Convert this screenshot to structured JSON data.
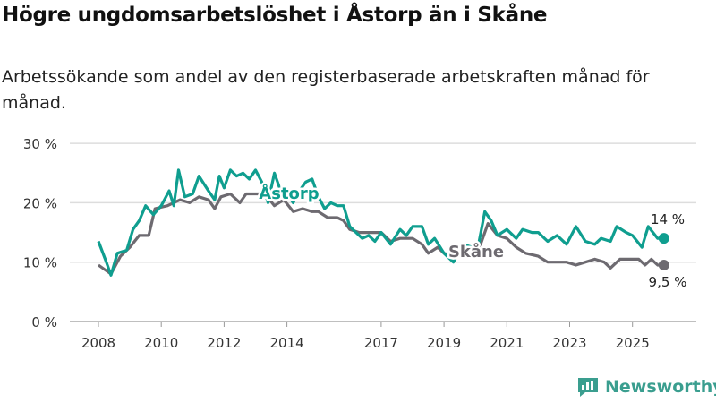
{
  "title": "Högre ungdomsarbetslöshet i Åstorp än i Skåne",
  "subtitle": "Arbetssökande som andel av den registerbaserade arbetskraften månad för månad.",
  "brand": "Newsworthy",
  "colors": {
    "astorp": "#0f9e8f",
    "skane": "#6d6a70",
    "grid": "#dddddd"
  },
  "chart_data": {
    "type": "line",
    "title": "Högre ungdomsarbetslöshet i Åstorp än i Skåne",
    "xlabel": "",
    "ylabel": "",
    "ylim": [
      0,
      30
    ],
    "xlim": [
      2007.0,
      2027.0
    ],
    "yticks": [
      0,
      10,
      20,
      30
    ],
    "ytick_labels": [
      "0 %",
      "10 %",
      "20 %",
      "30 %"
    ],
    "xticks": [
      2008,
      2010,
      2012,
      2014,
      2017,
      2019,
      2021,
      2023,
      2025
    ],
    "xtick_labels": [
      "2008",
      "2010",
      "2012",
      "2014",
      "2017",
      "2019",
      "2021",
      "2023",
      "2025"
    ],
    "grid": true,
    "series": [
      {
        "name": "Åstorp",
        "end_label": "14 %",
        "x": [
          2008.0,
          2008.25,
          2008.4,
          2008.6,
          2008.9,
          2009.1,
          2009.3,
          2009.5,
          2009.75,
          2010.0,
          2010.25,
          2010.4,
          2010.55,
          2010.75,
          2011.0,
          2011.2,
          2011.5,
          2011.7,
          2011.85,
          2012.0,
          2012.2,
          2012.4,
          2012.6,
          2012.8,
          2013.0,
          2013.2,
          2013.4,
          2013.6,
          2013.8,
          2014.0,
          2014.2,
          2014.4,
          2014.6,
          2014.8,
          2015.0,
          2015.2,
          2015.4,
          2015.6,
          2015.8,
          2016.0,
          2016.2,
          2016.4,
          2016.6,
          2016.8,
          2017.0,
          2017.3,
          2017.6,
          2017.8,
          2018.0,
          2018.3,
          2018.5,
          2018.7,
          2019.0,
          2019.3,
          2019.6,
          2019.9,
          2020.1,
          2020.3,
          2020.5,
          2020.7,
          2021.0,
          2021.3,
          2021.5,
          2021.8,
          2022.0,
          2022.3,
          2022.6,
          2022.9,
          2023.2,
          2023.5,
          2023.8,
          2024.0,
          2024.3,
          2024.5,
          2024.8,
          2025.0,
          2025.3,
          2025.5,
          2025.8,
          2026.0
        ],
        "values": [
          13.5,
          10,
          7.8,
          11.5,
          12,
          15.5,
          17,
          19.5,
          18,
          19.5,
          22,
          19.5,
          25.5,
          21,
          21.5,
          24.5,
          22,
          20.5,
          24.5,
          22.5,
          25.5,
          24.5,
          25,
          24,
          25.5,
          23.5,
          20,
          25,
          22,
          21.5,
          20,
          22,
          23.5,
          24,
          21,
          19,
          20,
          19.5,
          19.5,
          16,
          15,
          14,
          14.5,
          13.5,
          15,
          13,
          15.5,
          14.5,
          16,
          16,
          13,
          14,
          11.5,
          10,
          13,
          12.5,
          13,
          18.5,
          17,
          14.5,
          15.5,
          14,
          15.5,
          15,
          15,
          13.5,
          14.5,
          13,
          16,
          13.5,
          13,
          14,
          13.5,
          16,
          15,
          14.5,
          12.5,
          16,
          14,
          14
        ]
      },
      {
        "name": "Skåne",
        "end_label": "9,5 %",
        "x": [
          2008.0,
          2008.4,
          2008.7,
          2009.0,
          2009.3,
          2009.6,
          2009.8,
          2010.2,
          2010.6,
          2010.9,
          2011.2,
          2011.5,
          2011.7,
          2011.9,
          2012.2,
          2012.5,
          2012.7,
          2013.0,
          2013.3,
          2013.6,
          2013.9,
          2014.2,
          2014.5,
          2014.8,
          2015.0,
          2015.3,
          2015.6,
          2015.8,
          2016.0,
          2016.3,
          2016.6,
          2017.0,
          2017.3,
          2017.6,
          2018.0,
          2018.3,
          2018.5,
          2018.8,
          2019.0,
          2019.3,
          2019.6,
          2019.9,
          2020.1,
          2020.4,
          2020.7,
          2021.0,
          2021.3,
          2021.6,
          2022.0,
          2022.3,
          2022.6,
          2022.9,
          2023.2,
          2023.5,
          2023.8,
          2024.1,
          2024.3,
          2024.6,
          2024.9,
          2025.2,
          2025.4,
          2025.6,
          2025.8,
          2026.0
        ],
        "values": [
          9.5,
          8,
          11,
          12.5,
          14.5,
          14.5,
          19,
          19.5,
          20.5,
          20,
          21,
          20.5,
          19,
          21,
          21.5,
          20,
          21.5,
          21.5,
          21.5,
          19.5,
          20.5,
          18.5,
          19,
          18.5,
          18.5,
          17.5,
          17.5,
          17,
          15.5,
          15,
          15,
          15,
          13.5,
          14,
          14,
          13,
          11.5,
          12.5,
          11.5,
          11,
          11.5,
          11.5,
          12,
          16.5,
          14.5,
          14,
          12.5,
          11.5,
          11,
          10,
          10,
          10,
          9.5,
          10,
          10.5,
          10,
          9,
          10.5,
          10.5,
          10.5,
          9.5,
          10.5,
          9.5,
          9.5
        ]
      }
    ]
  }
}
